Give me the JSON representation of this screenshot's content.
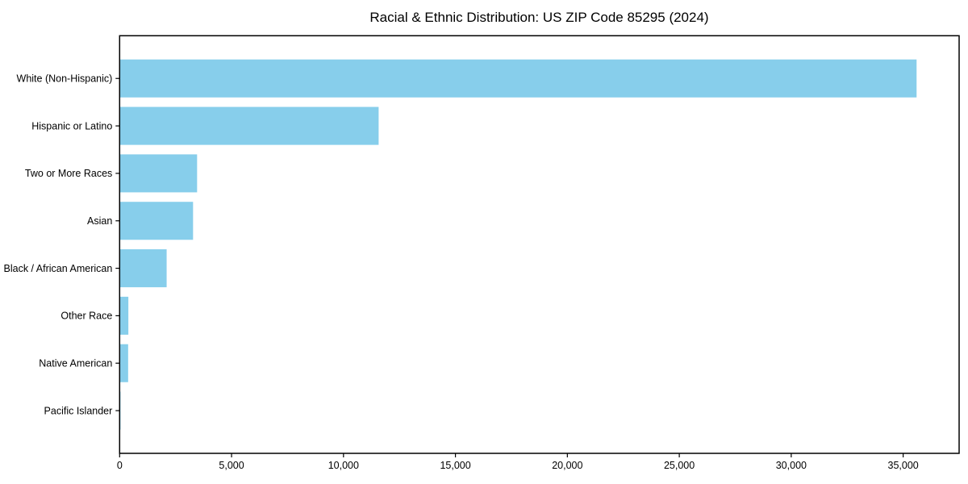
{
  "chart_data": {
    "type": "bar",
    "orientation": "horizontal",
    "title": "Racial & Ethnic Distribution: US ZIP Code 85295 (2024)",
    "categories": [
      "White (Non-Hispanic)",
      "Hispanic or Latino",
      "Two or More Races",
      "Asian",
      "Black / African American",
      "Other Race",
      "Native American",
      "Pacific Islander"
    ],
    "values": [
      35600,
      11570,
      3460,
      3280,
      2100,
      390,
      380,
      40
    ],
    "xlabel": "",
    "ylabel": "",
    "xlim": [
      0,
      37500
    ],
    "xticks": [
      0,
      5000,
      10000,
      15000,
      20000,
      25000,
      30000,
      35000
    ],
    "xtick_labels": [
      "0",
      "5,000",
      "10,000",
      "15,000",
      "20,000",
      "25,000",
      "30,000",
      "35,000"
    ],
    "grid": false,
    "legend_position": "none",
    "bar_color": "#87CEEB",
    "axis_color": "#000000",
    "text_color": "#000000",
    "background_color": "#ffffff"
  }
}
